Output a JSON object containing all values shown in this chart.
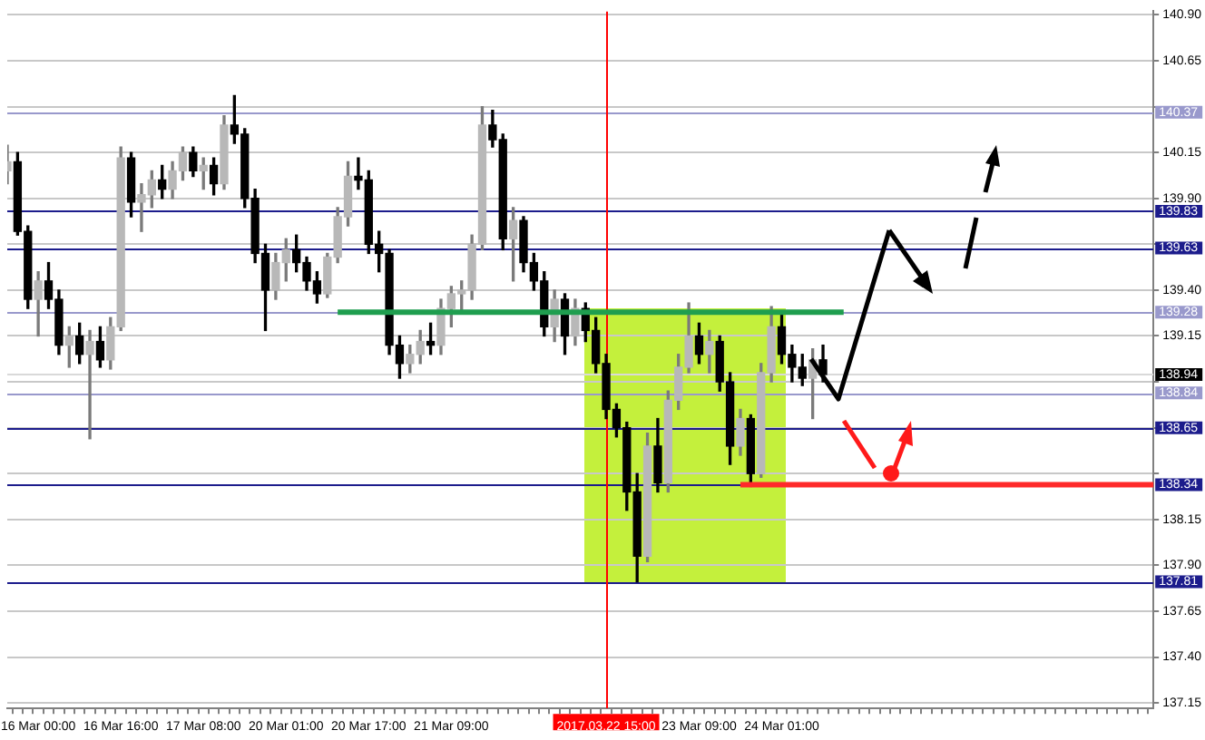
{
  "chart_data": {
    "type": "candlestick",
    "categories": [
      null,
      null,
      null,
      "16 Mar 00:00",
      null,
      null,
      null,
      null,
      null,
      null,
      null,
      "16 Mar 16:00",
      null,
      null,
      null,
      null,
      null,
      null,
      null,
      "17 Mar 08:00",
      null,
      null,
      null,
      null,
      null,
      null,
      null,
      "20 Mar 01:00",
      null,
      null,
      null,
      null,
      null,
      null,
      null,
      "20 Mar 17:00",
      null,
      null,
      null,
      null,
      null,
      null,
      null,
      "21 Mar 09:00",
      null,
      null,
      null,
      null,
      null,
      null,
      null,
      null,
      null,
      null,
      null,
      null,
      null,
      null,
      "2017.03.22 15:00",
      null,
      null,
      null,
      null,
      null,
      null,
      null,
      null,
      "23 Mar 09:00",
      null,
      null,
      null,
      null,
      null,
      null,
      null,
      "24 Mar 01:00",
      null,
      null,
      null,
      null,
      null,
      null,
      null,
      null,
      null,
      null,
      null,
      null,
      null,
      null,
      null,
      null,
      null,
      null,
      null,
      null,
      null,
      null,
      null,
      null,
      null,
      null,
      null,
      null,
      null,
      null,
      null,
      null,
      null,
      null,
      null,
      null
    ],
    "ohlc": [
      [
        140.05,
        140.19,
        139.98,
        140.1
      ],
      [
        140.1,
        140.15,
        139.7,
        139.72
      ],
      [
        139.72,
        139.75,
        139.3,
        139.35
      ],
      [
        139.35,
        139.5,
        139.15,
        139.45
      ],
      [
        139.45,
        139.55,
        139.3,
        139.35
      ],
      [
        139.35,
        139.4,
        139.05,
        139.1
      ],
      [
        139.1,
        139.2,
        138.98,
        139.15
      ],
      [
        139.15,
        139.22,
        139.0,
        139.05
      ],
      [
        139.05,
        139.18,
        138.59,
        139.12
      ],
      [
        139.12,
        139.2,
        138.98,
        139.02
      ],
      [
        139.02,
        139.25,
        138.97,
        139.2
      ],
      [
        139.2,
        140.18,
        139.18,
        140.12
      ],
      [
        140.12,
        140.15,
        139.8,
        139.88
      ],
      [
        139.88,
        139.98,
        139.72,
        139.92
      ],
      [
        139.92,
        140.05,
        139.85,
        140.0
      ],
      [
        140.0,
        140.08,
        139.9,
        139.95
      ],
      [
        139.95,
        140.1,
        139.9,
        140.05
      ],
      [
        140.05,
        140.18,
        140.0,
        140.15
      ],
      [
        140.15,
        140.18,
        140.02,
        140.05
      ],
      [
        140.05,
        140.12,
        139.95,
        140.08
      ],
      [
        140.08,
        140.12,
        139.92,
        139.98
      ],
      [
        139.98,
        140.35,
        139.95,
        140.3
      ],
      [
        140.3,
        140.46,
        140.2,
        140.25
      ],
      [
        140.25,
        140.28,
        139.85,
        139.9
      ],
      [
        139.9,
        139.95,
        139.55,
        139.6
      ],
      [
        139.6,
        139.65,
        139.18,
        139.4
      ],
      [
        139.4,
        139.6,
        139.35,
        139.55
      ],
      [
        139.55,
        139.68,
        139.45,
        139.62
      ],
      [
        139.62,
        139.7,
        139.5,
        139.55
      ],
      [
        139.55,
        139.58,
        139.4,
        139.45
      ],
      [
        139.45,
        139.5,
        139.33,
        139.38
      ],
      [
        139.38,
        139.6,
        139.36,
        139.58
      ],
      [
        139.58,
        139.85,
        139.55,
        139.8
      ],
      [
        139.8,
        140.1,
        139.75,
        140.02
      ],
      [
        140.02,
        140.12,
        139.95,
        140.0
      ],
      [
        140.0,
        140.05,
        139.6,
        139.65
      ],
      [
        139.65,
        139.72,
        139.5,
        139.6
      ],
      [
        139.6,
        139.62,
        139.05,
        139.1
      ],
      [
        139.1,
        139.15,
        138.92,
        139.0
      ],
      [
        139.0,
        139.1,
        138.95,
        139.05
      ],
      [
        139.05,
        139.18,
        139.0,
        139.12
      ],
      [
        139.12,
        139.22,
        139.05,
        139.1
      ],
      [
        139.1,
        139.35,
        139.05,
        139.3
      ],
      [
        139.3,
        139.42,
        139.2,
        139.38
      ],
      [
        139.38,
        139.45,
        139.28,
        139.4
      ],
      [
        139.4,
        139.7,
        139.35,
        139.65
      ],
      [
        139.65,
        140.4,
        139.62,
        140.3
      ],
      [
        140.3,
        140.38,
        140.18,
        140.22
      ],
      [
        140.22,
        140.25,
        139.62,
        139.68
      ],
      [
        139.68,
        139.85,
        139.45,
        139.78
      ],
      [
        139.78,
        139.8,
        139.5,
        139.55
      ],
      [
        139.55,
        139.6,
        139.4,
        139.45
      ],
      [
        139.45,
        139.5,
        139.15,
        139.2
      ],
      [
        139.2,
        139.4,
        139.12,
        139.35
      ],
      [
        139.35,
        139.38,
        139.05,
        139.15
      ],
      [
        139.15,
        139.35,
        139.1,
        139.3
      ],
      [
        139.3,
        139.33,
        139.12,
        139.18
      ],
      [
        139.18,
        139.25,
        138.95,
        139.0
      ],
      [
        139.0,
        139.05,
        138.7,
        138.75
      ],
      [
        138.75,
        138.78,
        138.6,
        138.65
      ],
      [
        138.65,
        138.68,
        138.2,
        138.3
      ],
      [
        138.3,
        138.4,
        137.81,
        137.95
      ],
      [
        137.95,
        138.62,
        137.92,
        138.55
      ],
      [
        138.55,
        138.7,
        138.3,
        138.35
      ],
      [
        138.35,
        138.85,
        138.3,
        138.8
      ],
      [
        138.8,
        139.05,
        138.75,
        138.98
      ],
      [
        138.98,
        139.33,
        138.95,
        139.15
      ],
      [
        139.15,
        139.22,
        139.0,
        139.05
      ],
      [
        139.05,
        139.18,
        138.95,
        139.12
      ],
      [
        139.12,
        139.15,
        138.85,
        138.9
      ],
      [
        138.9,
        138.95,
        138.45,
        138.55
      ],
      [
        138.55,
        138.75,
        138.5,
        138.7
      ],
      [
        138.7,
        138.72,
        138.33,
        138.4
      ],
      [
        138.4,
        139.0,
        138.38,
        138.95
      ],
      [
        138.95,
        139.31,
        138.9,
        139.2
      ],
      [
        139.2,
        139.28,
        139.0,
        139.05
      ],
      [
        139.05,
        139.1,
        138.9,
        138.98
      ],
      [
        138.98,
        139.05,
        138.88,
        138.92
      ],
      [
        138.92,
        139.08,
        138.7,
        139.02
      ],
      [
        139.02,
        139.1,
        138.9,
        138.94
      ],
      null,
      null,
      null,
      null,
      null,
      null,
      null,
      null,
      null,
      null,
      null,
      null,
      null,
      null,
      null,
      null,
      null,
      null,
      null,
      null,
      null,
      null,
      null,
      null,
      null,
      null,
      null,
      null,
      null,
      null,
      null,
      null
    ],
    "series": [
      {
        "type": "line",
        "color": "#1f9e4f",
        "values": [
          null,
          null,
          null,
          null,
          null,
          null,
          null,
          null,
          null,
          null,
          null,
          null,
          null,
          null,
          null,
          null,
          null,
          null,
          null,
          null,
          null,
          null,
          null,
          null,
          null,
          null,
          null,
          null,
          null,
          null,
          null,
          null,
          139.28,
          139.28,
          139.28,
          139.28,
          139.28,
          139.28,
          139.28,
          139.28,
          139.28,
          139.28,
          139.28,
          139.28,
          139.28,
          139.28,
          139.28,
          139.28,
          139.28,
          139.28,
          139.28,
          139.28,
          139.28,
          139.28,
          139.28,
          139.28,
          139.28,
          139.28,
          139.28,
          139.28,
          139.28,
          139.28,
          139.28,
          139.28,
          139.28,
          139.28,
          139.28,
          139.28,
          139.28,
          139.28,
          139.28,
          139.28,
          139.28,
          139.28,
          139.28,
          139.28,
          139.28,
          139.28,
          139.28,
          139.28,
          139.28,
          139.28,
          null,
          null,
          null,
          null,
          null,
          null,
          null,
          null,
          null,
          null,
          null,
          null,
          null,
          null,
          null,
          null,
          null,
          null,
          null,
          null,
          null,
          null,
          null,
          null,
          null,
          null,
          null,
          null,
          null,
          null
        ]
      },
      {
        "type": "line",
        "color": "#ff2a2a",
        "values": [
          null,
          null,
          null,
          null,
          null,
          null,
          null,
          null,
          null,
          null,
          null,
          null,
          null,
          null,
          null,
          null,
          null,
          null,
          null,
          null,
          null,
          null,
          null,
          null,
          null,
          null,
          null,
          null,
          null,
          null,
          null,
          null,
          null,
          null,
          null,
          null,
          null,
          null,
          null,
          null,
          null,
          null,
          null,
          null,
          null,
          null,
          null,
          null,
          null,
          null,
          null,
          null,
          null,
          null,
          null,
          null,
          null,
          null,
          null,
          null,
          null,
          null,
          null,
          null,
          null,
          null,
          null,
          null,
          null,
          null,
          null,
          138.34,
          138.34,
          138.34,
          138.34,
          138.34,
          138.34,
          138.34,
          138.34,
          138.34,
          138.34,
          138.34,
          138.34,
          138.34,
          138.34,
          138.34,
          138.34,
          138.34,
          138.34,
          138.34,
          138.34,
          138.34,
          138.34,
          138.34,
          138.34,
          138.34,
          138.34,
          138.34,
          138.34,
          138.34,
          138.34,
          138.34,
          138.34,
          138.34,
          138.34,
          138.34,
          138.34,
          138.34,
          138.34,
          138.34,
          138.34,
          138.34
        ]
      }
    ],
    "ylim": [
      137.12,
      140.92
    ],
    "yticks": [
      137.15,
      {
        "value": 137.4,
        "label": "137.40"
      },
      137.65,
      {
        "value": 137.9,
        "label": "137.90"
      },
      138.15,
      {
        "value": 138.4,
        "label": null
      },
      {
        "value": 138.65,
        "label": null
      },
      {
        "value": 138.9,
        "label": null
      },
      139.15,
      {
        "value": 139.4,
        "label": "139.40"
      },
      {
        "value": 139.65,
        "label": null
      },
      {
        "value": 139.9,
        "label": "139.90"
      },
      140.15,
      {
        "value": 140.4,
        "label": null
      },
      140.65,
      {
        "value": 140.9,
        "label": "140.90"
      }
    ],
    "grid": true,
    "ref_lines": [
      {
        "axis": "y",
        "value": 140.37,
        "label": "140.37",
        "color": "#9999cc"
      },
      {
        "axis": "y",
        "value": 139.83,
        "label": "139.83",
        "color": "#1c1c8c"
      },
      {
        "axis": "y",
        "value": 139.63,
        "label": "139.63",
        "color": "#1c1c8c"
      },
      {
        "axis": "y",
        "value": 139.28,
        "label": "139.28",
        "color": "#9999cc"
      },
      {
        "axis": "y",
        "value": 138.94,
        "label": "138.94",
        "color": "#d9d9d9"
      },
      {
        "axis": "y",
        "value": 138.84,
        "label": "138.84",
        "color": "#9999cc"
      },
      {
        "axis": "y",
        "value": 138.65,
        "label": "138.65",
        "color": "#1c1c8c"
      },
      {
        "axis": "y",
        "value": 138.34,
        "label": "138.34",
        "color": "#1c1c8c"
      },
      {
        "axis": "y",
        "value": 137.81,
        "label": "137.81",
        "color": "#1c1c8c"
      },
      {
        "axis": "x",
        "value": "2017.03.22 15:00",
        "color": "#ff0000"
      }
    ]
  }
}
